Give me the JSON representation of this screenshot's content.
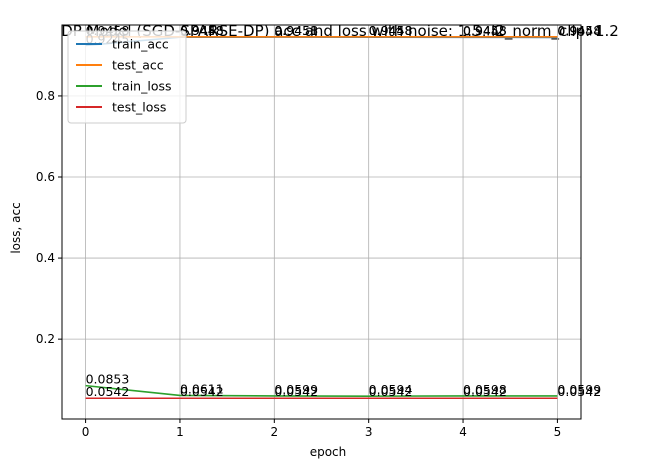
{
  "chart_data": {
    "type": "line",
    "title": "DP Model (SGD-SPARSE-DP) acc and loss with noise: 1.5, l2_norm_clip: 1.2",
    "xlabel": "epoch",
    "ylabel": "loss, acc",
    "xlim": [
      -0.25,
      5.25
    ],
    "ylim": [
      0.003,
      0.975
    ],
    "x": [
      0,
      1,
      2,
      3,
      4,
      5
    ],
    "xticks": [
      "0",
      "1",
      "2",
      "3",
      "4",
      "5"
    ],
    "yticks": [
      {
        "value": 0.2,
        "label": "0.2"
      },
      {
        "value": 0.4,
        "label": "0.4"
      },
      {
        "value": 0.6,
        "label": "0.6"
      },
      {
        "value": 0.8,
        "label": "0.8"
      }
    ],
    "grid": true,
    "legend_position": "top-left",
    "series": [
      {
        "name": "train_acc",
        "color": "#1f77b4",
        "values": [
          0.9245,
          0.9448,
          0.9451,
          0.9448,
          0.9445,
          0.9444
        ],
        "labels": [
          "0.9245",
          "0.9448",
          "0.9451",
          "0.9448",
          "0.9445",
          "0.9444"
        ]
      },
      {
        "name": "test_acc",
        "color": "#ff7f0e",
        "values": [
          0.9458,
          0.9458,
          0.9458,
          0.9458,
          0.9458,
          0.9458
        ],
        "labels": [
          "0.9458",
          "0.9458",
          "0.9458",
          "0.9458",
          "0.9458",
          "0.9458"
        ]
      },
      {
        "name": "train_loss",
        "color": "#2ca02c",
        "values": [
          0.0853,
          0.0611,
          0.0599,
          0.0594,
          0.0598,
          0.0599
        ],
        "labels": [
          "0.0853",
          "0.0611",
          "0.0599",
          "0.0594",
          "0.0598",
          "0.0599"
        ]
      },
      {
        "name": "test_loss",
        "color": "#d62728",
        "values": [
          0.0542,
          0.0542,
          0.0542,
          0.0542,
          0.0542,
          0.0542
        ],
        "labels": [
          "0.0542",
          "0.0542",
          "0.0542",
          "0.0542",
          "0.0542",
          "0.0542"
        ]
      }
    ]
  }
}
